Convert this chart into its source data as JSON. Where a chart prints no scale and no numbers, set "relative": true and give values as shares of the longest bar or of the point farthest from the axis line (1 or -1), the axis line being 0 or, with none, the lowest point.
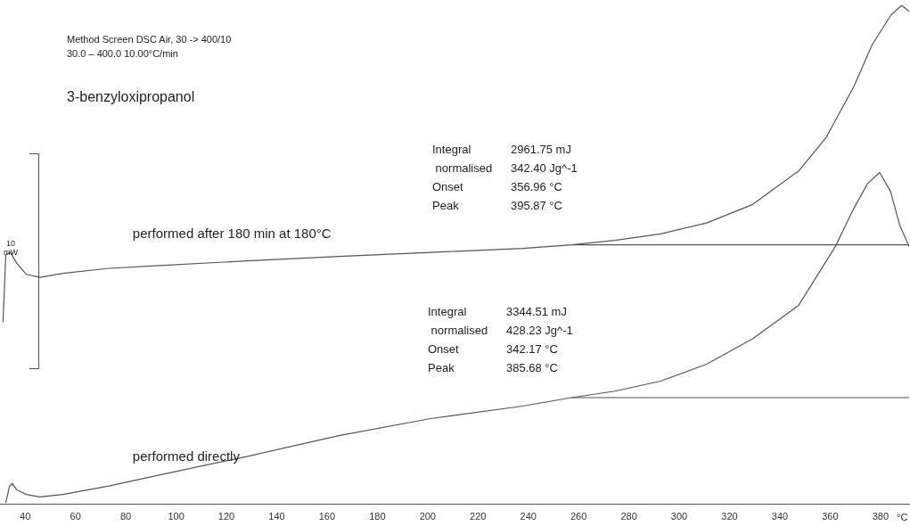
{
  "chart_data": {
    "type": "line",
    "title": "3-benzyloxipropanol",
    "xlabel": "°C",
    "relative": true,
    "grid": false,
    "legend": false,
    "marker": "none",
    "line_style": "solid",
    "xlim": [
      30,
      391.4
    ],
    "xticks": [
      40,
      60,
      80,
      100,
      120,
      140,
      160,
      180,
      200,
      220,
      240,
      260,
      280,
      300,
      320,
      340,
      360,
      380
    ],
    "annotations": [
      "Method Screen DSC Air, 30 -> 400/10",
      "30.0 – 400.0 10.00°C/min",
      "Integral\t2961.75 mJ",
      " normalised\t342.40 Jg^-1",
      "Onset\t356.96 °C",
      "Peak\t395.87 °C",
      "Integral\t3344.51 mJ",
      " normalised\t428.23 Jg^-1",
      "Onset\t342.17 °C",
      "Peak\t385.68 °C",
      "10\nmW"
    ],
    "series": [
      {
        "name": "performed after 180 min at 180°C",
        "color": "#555555",
        "x": [
          31.2,
          32.3,
          34.1,
          36.7,
          40.4,
          45.9,
          55.0,
          73.3,
          91.6,
          128.1,
          164.7,
          201.2,
          237.8,
          257.2,
          274.4,
          292.6,
          310.9,
          329.2,
          347.5,
          358.5,
          369.4,
          376.7,
          384.1,
          388.4,
          391.4
        ],
        "values": [
          0.365,
          0.5,
          0.505,
          0.483,
          0.461,
          0.455,
          0.463,
          0.473,
          0.478,
          0.488,
          0.497,
          0.505,
          0.513,
          0.52,
          0.529,
          0.542,
          0.564,
          0.601,
          0.668,
          0.736,
          0.837,
          0.921,
          0.98,
          1,
          0.988
        ]
      },
      {
        "name": "performed directly",
        "color": "#555555",
        "x": [
          32.3,
          33.8,
          34.9,
          36.7,
          40.4,
          45.9,
          55.0,
          73.3,
          91.6,
          128.1,
          164.7,
          201.2,
          237.8,
          257.2,
          274.4,
          292.6,
          310.9,
          329.2,
          347.5,
          362.1,
          369.4,
          374.9,
          379.7,
          384.1,
          387.7,
          391.4
        ],
        "values": [
          0.003,
          0.037,
          0.042,
          0.029,
          0.02,
          0.015,
          0.02,
          0.037,
          0.057,
          0.096,
          0.138,
          0.172,
          0.197,
          0.214,
          0.227,
          0.247,
          0.281,
          0.332,
          0.399,
          0.517,
          0.593,
          0.643,
          0.665,
          0.626,
          0.559,
          0.517
        ]
      },
      {
        "type": "line",
        "color": "#555555",
        "x": [
          257.2,
          391.4
        ],
        "values": [
          0.52,
          0.52
        ]
      },
      {
        "type": "line",
        "color": "#555555",
        "x": [
          257.2,
          391.4
        ],
        "values": [
          0.214,
          0.214
        ]
      }
    ]
  }
}
